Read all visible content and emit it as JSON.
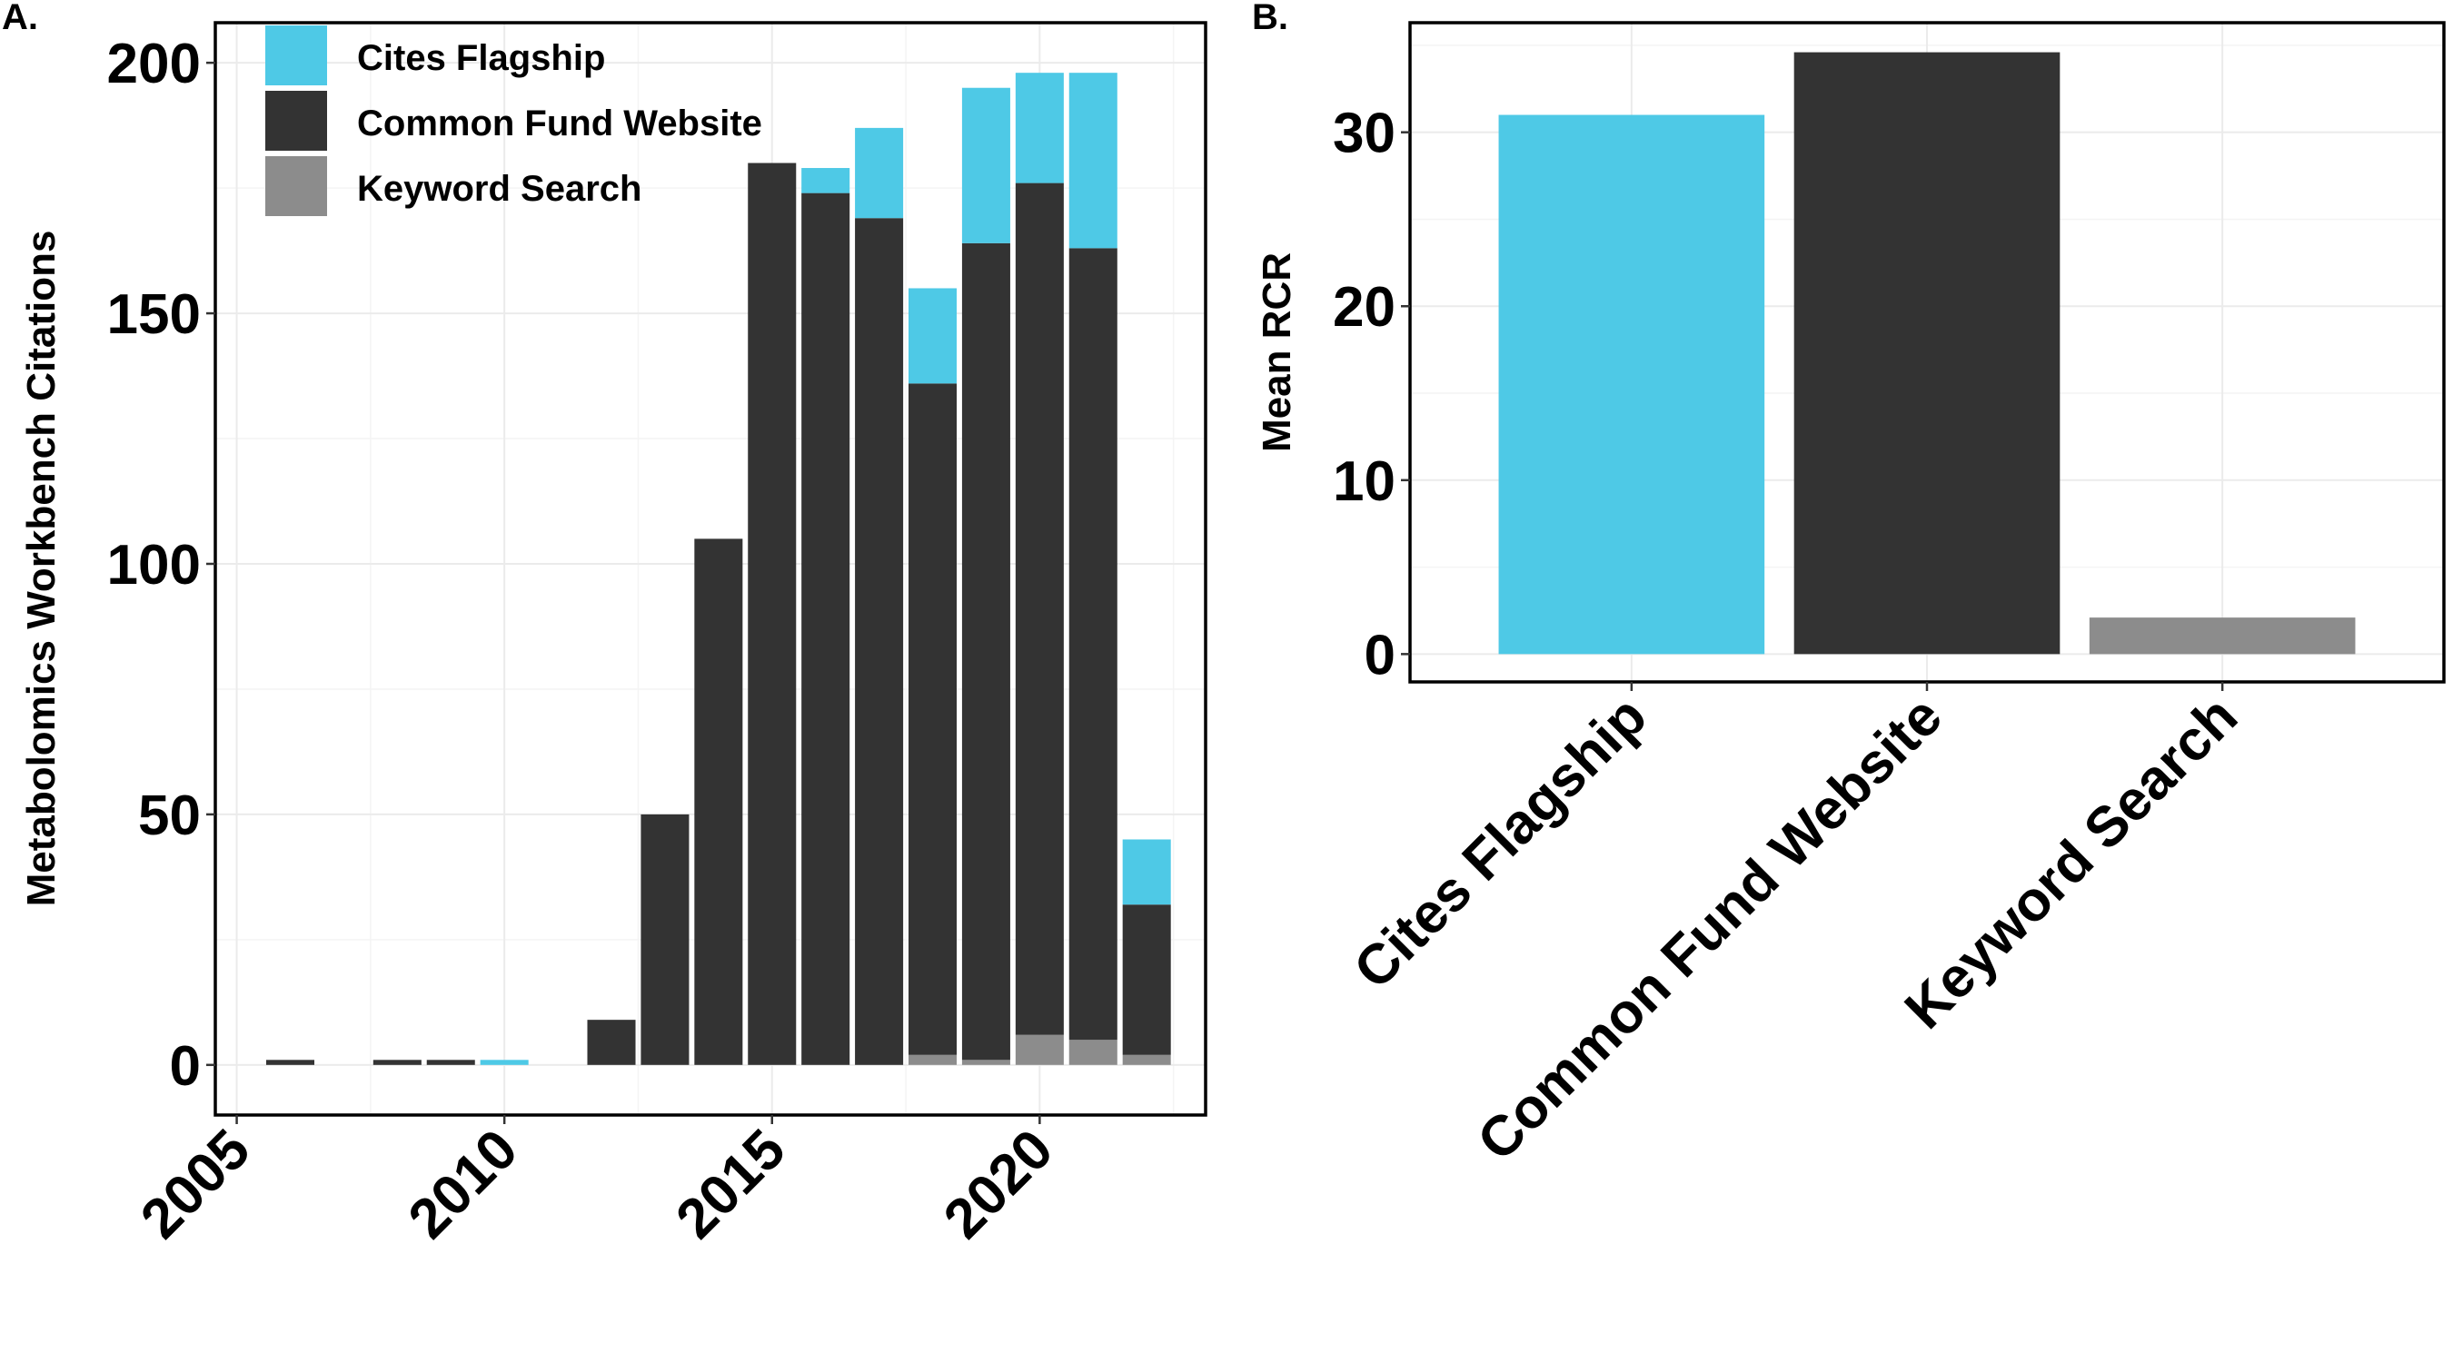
{
  "colors": {
    "cites_flagship": "#4ec9e6",
    "common_fund_website": "#333333",
    "keyword_search": "#8c8c8c"
  },
  "chart_data": [
    {
      "panel_label": "A.",
      "type": "bar",
      "stacked": true,
      "ylabel": "Metabolomics Workbench Citations",
      "xlabel": "",
      "x_ticks": [
        "2005",
        "2010",
        "2015",
        "2020"
      ],
      "y_ticks": [
        "0",
        "50",
        "100",
        "150",
        "200"
      ],
      "xlim": [
        2004.6,
        2023.1
      ],
      "ylim": [
        -10,
        208
      ],
      "grid": true,
      "legend_position": "top-left",
      "years": [
        2006,
        2008,
        2009,
        2010,
        2012,
        2013,
        2014,
        2015,
        2016,
        2017,
        2018,
        2019,
        2020,
        2021,
        2022
      ],
      "series": [
        {
          "name": "Keyword Search",
          "color_key": "keyword_search",
          "values": [
            0,
            0,
            0,
            0,
            0,
            0,
            0,
            0,
            0,
            0,
            2,
            1,
            6,
            5,
            2
          ]
        },
        {
          "name": "Common Fund Website",
          "color_key": "common_fund_website",
          "values": [
            1,
            1,
            1,
            0,
            9,
            50,
            105,
            180,
            174,
            169,
            134,
            163,
            170,
            158,
            30
          ]
        },
        {
          "name": "Cites Flagship",
          "color_key": "cites_flagship",
          "values": [
            0,
            0,
            0,
            1,
            0,
            0,
            0,
            0,
            5,
            18,
            19,
            31,
            22,
            35,
            13
          ]
        }
      ],
      "legend": [
        "Cites Flagship",
        "Common Fund Website",
        "Keyword Search"
      ]
    },
    {
      "panel_label": "B.",
      "type": "bar",
      "ylabel": "Mean RCR",
      "xlabel": "",
      "y_ticks": [
        "0",
        "10",
        "20",
        "30"
      ],
      "ylim": [
        -1.6,
        36.3
      ],
      "grid": true,
      "categories": [
        "Cites Flagship",
        "Common Fund Website",
        "Keyword Search"
      ],
      "values": [
        31.0,
        34.6,
        2.1
      ],
      "color_keys": [
        "cites_flagship",
        "common_fund_website",
        "keyword_search"
      ]
    }
  ]
}
